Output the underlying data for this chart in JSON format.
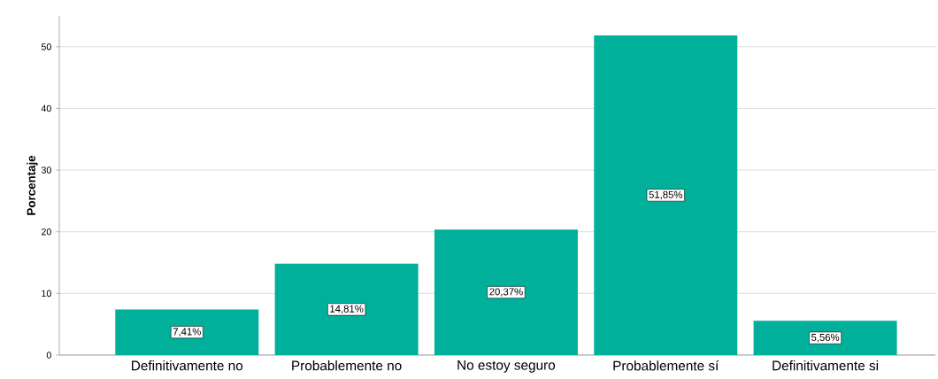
{
  "chart_data": {
    "type": "bar",
    "ylabel": "Porcentaje",
    "categories": [
      "Definitivamente no",
      "Probablemente no",
      "No estoy seguro",
      "Probablemente sí",
      "Definitivamente si"
    ],
    "values": [
      7.41,
      14.81,
      20.37,
      51.85,
      5.56
    ],
    "value_labels": [
      "7,41%",
      "14,81%",
      "20,37%",
      "51,85%",
      "5,56%"
    ],
    "color": "#00b09b",
    "ylim": [
      0,
      55
    ],
    "yticks": [
      0,
      10,
      20,
      30,
      40,
      50
    ],
    "grid": "y"
  }
}
